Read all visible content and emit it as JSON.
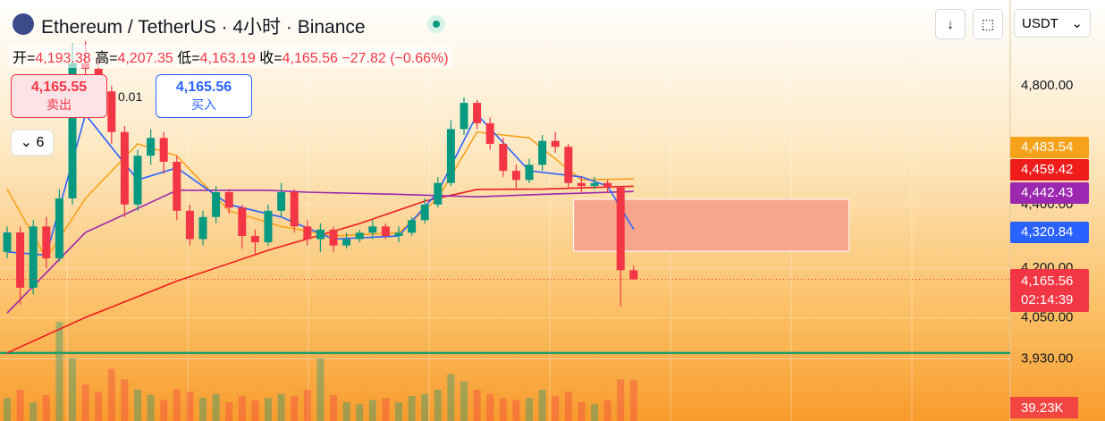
{
  "header": {
    "title": "Ethereum / TetherUS · 4小时 · Binance",
    "currency": "USDT",
    "sell_price": "4,165.55",
    "sell": "卖出",
    "quantity": "0.01",
    "buy_price": "4,165.56",
    "buy": "买入",
    "indicator_count": "6"
  },
  "chart_data": {
    "type": "candlestick",
    "log_scale": true,
    "last_bar_labels": {
      "open_key": "开=",
      "open": "4,193.38",
      "high_key": "高=",
      "high": "4,207.35",
      "low_key": "低=",
      "low": "4,163.19",
      "close_key": "收=",
      "close": "4,165.56",
      "change": "−27.82 (−0.66%)"
    },
    "open": [
      4250,
      4311,
      4140,
      4330,
      4230,
      4420,
      4880,
      4860,
      4780,
      4640,
      4400,
      4560,
      4620,
      4540,
      4380,
      4290,
      4360,
      4440,
      4390,
      4300,
      4280,
      4380,
      4440,
      4330,
      4290,
      4320,
      4270,
      4290,
      4310,
      4330,
      4300,
      4310,
      4350,
      4400,
      4470,
      4650,
      4740,
      4670,
      4600,
      4510,
      4480,
      4530,
      4610,
      4590,
      4470,
      4460,
      4470,
      4455,
      4193.38
    ],
    "high": [
      4330,
      4330,
      4350,
      4360,
      4450,
      4950,
      4960,
      4900,
      4800,
      4660,
      4580,
      4650,
      4640,
      4560,
      4400,
      4380,
      4460,
      4450,
      4400,
      4320,
      4400,
      4470,
      4450,
      4350,
      4340,
      4330,
      4310,
      4320,
      4350,
      4340,
      4330,
      4360,
      4420,
      4490,
      4680,
      4760,
      4750,
      4690,
      4620,
      4530,
      4550,
      4630,
      4640,
      4600,
      4490,
      4490,
      4480,
      4460,
      4207.35
    ],
    "low": [
      4230,
      4090,
      4120,
      4200,
      4220,
      4400,
      4800,
      4740,
      4600,
      4360,
      4380,
      4530,
      4500,
      4350,
      4270,
      4270,
      4340,
      4370,
      4260,
      4240,
      4270,
      4360,
      4310,
      4270,
      4250,
      4250,
      4260,
      4280,
      4290,
      4290,
      4280,
      4300,
      4340,
      4390,
      4460,
      4630,
      4650,
      4580,
      4490,
      4450,
      4470,
      4510,
      4570,
      4450,
      4440,
      4450,
      4440,
      4085,
      4163.19
    ],
    "close": [
      4311,
      4140,
      4330,
      4230,
      4420,
      4880,
      4860,
      4780,
      4640,
      4400,
      4560,
      4620,
      4540,
      4380,
      4290,
      4360,
      4440,
      4390,
      4300,
      4280,
      4380,
      4440,
      4330,
      4290,
      4320,
      4270,
      4290,
      4310,
      4330,
      4300,
      4310,
      4350,
      4400,
      4470,
      4650,
      4740,
      4670,
      4600,
      4510,
      4480,
      4530,
      4610,
      4590,
      4470,
      4460,
      4470,
      4455,
      4193.38,
      4165.56
    ],
    "volume": [
      22,
      30,
      18,
      25,
      95,
      60,
      35,
      28,
      50,
      40,
      30,
      25,
      20,
      30,
      28,
      22,
      26,
      18,
      24,
      20,
      22,
      26,
      24,
      30,
      60,
      25,
      18,
      16,
      20,
      22,
      18,
      24,
      26,
      30,
      45,
      38,
      30,
      26,
      22,
      20,
      22,
      30,
      24,
      28,
      18,
      16,
      20,
      40,
      39.23
    ],
    "volume_labels": {
      "last": "39.23K"
    },
    "volume_lim": [
      0,
      120
    ],
    "up_color": "#089981",
    "down_color": "#f23645",
    "ylim": [
      3755,
      5111
    ],
    "yticks": [
      {
        "value": 4800,
        "label": "4,800.00"
      },
      {
        "value": 4400,
        "label": "4,400.00"
      },
      {
        "value": 4200,
        "label": "4,200.00"
      },
      {
        "value": 4050,
        "label": "4,050.00"
      },
      {
        "value": 3930,
        "label": "3,930.00"
      }
    ],
    "lines": [
      {
        "color": "#f7a21b",
        "x": [
          0,
          3,
          6,
          10,
          13,
          17,
          21,
          25,
          30,
          33,
          36,
          40,
          44,
          48
        ],
        "values": [
          4450,
          4230,
          4420,
          4600,
          4560,
          4380,
          4330,
          4300,
          4310,
          4420,
          4640,
          4620,
          4480,
          4483.54
        ],
        "last_label": "4,483.54"
      },
      {
        "color": "#ef1c1c",
        "x": [
          0,
          6,
          13,
          20,
          27,
          32,
          36,
          41,
          48
        ],
        "values": [
          3947,
          4051,
          4160,
          4255,
          4339,
          4411,
          4449,
          4450,
          4459.42
        ],
        "last_label": "4,459.42"
      },
      {
        "color": "#9c27b0",
        "x": [
          0,
          6,
          13,
          20,
          23,
          30,
          36,
          41,
          48
        ],
        "values": [
          4064,
          4311,
          4446,
          4446,
          4440,
          4433,
          4425,
          4433,
          4442.43
        ],
        "last_label": "4,442.43"
      },
      {
        "color": "#2962ff",
        "x": [
          0,
          3,
          6,
          10,
          13,
          17,
          21,
          25,
          30,
          33,
          36,
          40,
          44,
          46,
          48
        ],
        "values": [
          4250,
          4240,
          4700,
          4480,
          4520,
          4400,
          4360,
          4290,
          4300,
          4440,
          4700,
          4510,
          4490,
          4460,
          4320.84
        ],
        "last_label": "4,320.84"
      }
    ],
    "hline": {
      "value": 3947,
      "color": "#1e9e6a"
    },
    "zone": {
      "x": [
        43.4,
        64.5
      ],
      "y": [
        4252,
        4417
      ],
      "color": "#f7a58c"
    },
    "countdown": "02:14:39"
  }
}
